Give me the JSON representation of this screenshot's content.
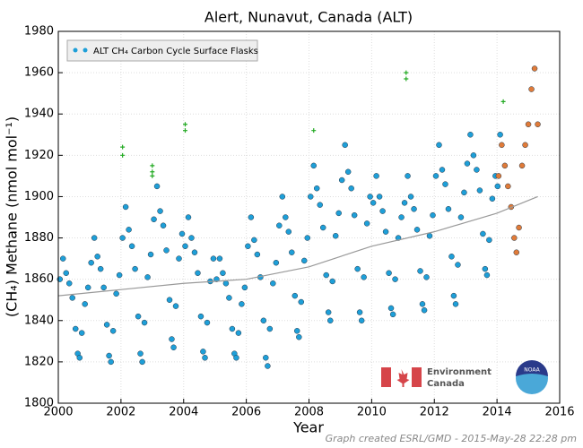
{
  "chart_data": {
    "type": "scatter",
    "title": "Alert, Nunavut, Canada (ALT)",
    "x_label": "Year",
    "y_label": "(CH₄) Methane (nmol mol⁻¹)",
    "xlim": [
      2000,
      2016
    ],
    "xticks": [
      2000,
      2002,
      2004,
      2006,
      2008,
      2010,
      2012,
      2014,
      2016
    ],
    "ylim": [
      1800,
      1980
    ],
    "yticks": [
      1800,
      1820,
      1840,
      1860,
      1880,
      1900,
      1920,
      1940,
      1960,
      1980
    ],
    "grid": true,
    "legend": "upper left",
    "footer": "Graph created ESRL/GMD - 2015-May-28 22:28 pm",
    "logo_texts": [
      "Environment",
      "Canada",
      "NOAA"
    ],
    "series": [
      {
        "name": "ALT CH₄ Carbon Cycle Surface Flasks",
        "color": "#1e9fd8",
        "marker": "circle",
        "x": [
          2000.05,
          2000.15,
          2000.25,
          2000.35,
          2000.45,
          2000.55,
          2000.62,
          2000.68,
          2000.75,
          2000.85,
          2000.95,
          2001.05,
          2001.15,
          2001.25,
          2001.35,
          2001.45,
          2001.55,
          2001.62,
          2001.68,
          2001.75,
          2001.85,
          2001.95,
          2002.05,
          2002.15,
          2002.25,
          2002.35,
          2002.45,
          2002.55,
          2002.62,
          2002.68,
          2002.75,
          2002.85,
          2002.95,
          2003.05,
          2003.15,
          2003.25,
          2003.35,
          2003.45,
          2003.55,
          2003.62,
          2003.68,
          2003.75,
          2003.85,
          2003.95,
          2004.05,
          2004.15,
          2004.25,
          2004.35,
          2004.45,
          2004.55,
          2004.62,
          2004.68,
          2004.75,
          2004.85,
          2004.95,
          2005.05,
          2005.15,
          2005.25,
          2005.35,
          2005.45,
          2005.55,
          2005.62,
          2005.68,
          2005.75,
          2005.85,
          2005.95,
          2006.05,
          2006.15,
          2006.25,
          2006.35,
          2006.45,
          2006.55,
          2006.62,
          2006.68,
          2006.75,
          2006.85,
          2006.95,
          2007.05,
          2007.15,
          2007.25,
          2007.35,
          2007.45,
          2007.55,
          2007.62,
          2007.68,
          2007.75,
          2007.85,
          2007.95,
          2008.05,
          2008.15,
          2008.25,
          2008.35,
          2008.45,
          2008.55,
          2008.62,
          2008.68,
          2008.75,
          2008.85,
          2008.95,
          2009.05,
          2009.15,
          2009.25,
          2009.35,
          2009.45,
          2009.55,
          2009.62,
          2009.68,
          2009.75,
          2009.85,
          2009.95,
          2010.05,
          2010.15,
          2010.25,
          2010.35,
          2010.45,
          2010.55,
          2010.62,
          2010.68,
          2010.75,
          2010.85,
          2010.95,
          2011.05,
          2011.15,
          2011.25,
          2011.35,
          2011.45,
          2011.55,
          2011.62,
          2011.68,
          2011.75,
          2011.85,
          2011.95,
          2012.05,
          2012.15,
          2012.25,
          2012.35,
          2012.45,
          2012.55,
          2012.62,
          2012.68,
          2012.75,
          2012.85,
          2012.95,
          2013.05,
          2013.15,
          2013.25,
          2013.35,
          2013.45,
          2013.55,
          2013.62,
          2013.68,
          2013.75,
          2013.85,
          2013.95,
          2014.02,
          2014.1
        ],
        "values": [
          1860,
          1870,
          1863,
          1858,
          1851,
          1836,
          1824,
          1822,
          1834,
          1848,
          1856,
          1868,
          1880,
          1871,
          1865,
          1856,
          1838,
          1823,
          1820,
          1835,
          1853,
          1862,
          1880,
          1895,
          1884,
          1876,
          1865,
          1842,
          1824,
          1820,
          1839,
          1861,
          1872,
          1889,
          1905,
          1893,
          1886,
          1874,
          1850,
          1831,
          1827,
          1847,
          1870,
          1882,
          1876,
          1890,
          1880,
          1873,
          1863,
          1842,
          1825,
          1822,
          1839,
          1859,
          1870,
          1860,
          1870,
          1863,
          1858,
          1851,
          1836,
          1824,
          1822,
          1834,
          1848,
          1856,
          1876,
          1890,
          1879,
          1872,
          1861,
          1840,
          1822,
          1818,
          1836,
          1858,
          1868,
          1886,
          1900,
          1890,
          1883,
          1873,
          1852,
          1835,
          1832,
          1849,
          1869,
          1880,
          1900,
          1915,
          1904,
          1896,
          1885,
          1862,
          1844,
          1840,
          1859,
          1881,
          1892,
          1908,
          1925,
          1912,
          1904,
          1891,
          1865,
          1844,
          1840,
          1861,
          1887,
          1900,
          1897,
          1910,
          1900,
          1893,
          1883,
          1863,
          1846,
          1843,
          1860,
          1880,
          1890,
          1897,
          1910,
          1900,
          1894,
          1884,
          1864,
          1848,
          1845,
          1861,
          1881,
          1891,
          1910,
          1925,
          1913,
          1906,
          1894,
          1871,
          1852,
          1848,
          1867,
          1890,
          1902,
          1916,
          1930,
          1920,
          1913,
          1903,
          1882,
          1865,
          1862,
          1879,
          1899,
          1910,
          1905,
          1930
        ]
      },
      {
        "color": "#e07b39",
        "marker": "circle",
        "x": [
          2014.05,
          2014.15,
          2014.25,
          2014.35,
          2014.45,
          2014.55,
          2014.62,
          2014.7,
          2014.8,
          2014.9,
          2015.0,
          2015.1,
          2015.2,
          2015.3
        ],
        "values": [
          1910,
          1925,
          1915,
          1905,
          1895,
          1880,
          1873,
          1885,
          1915,
          1925,
          1935,
          1952,
          1962,
          1935
        ]
      },
      {
        "color": "#22aa22",
        "marker": "plus",
        "x": [
          2002.05,
          2002.05,
          2003.0,
          2003.0,
          2003.0,
          2004.05,
          2004.05,
          2008.15,
          2011.1,
          2011.1,
          2014.2
        ],
        "values": [
          1924,
          1920,
          1915,
          1912,
          1910,
          1935,
          1932,
          1932,
          1960,
          1957,
          1946
        ]
      },
      {
        "color": "#999999",
        "marker": "line",
        "x": [
          2000,
          2002,
          2004,
          2006,
          2008,
          2010,
          2012,
          2014,
          2015.3
        ],
        "values": [
          1852,
          1855,
          1858,
          1860,
          1866,
          1876,
          1883,
          1892,
          1900
        ]
      }
    ]
  }
}
